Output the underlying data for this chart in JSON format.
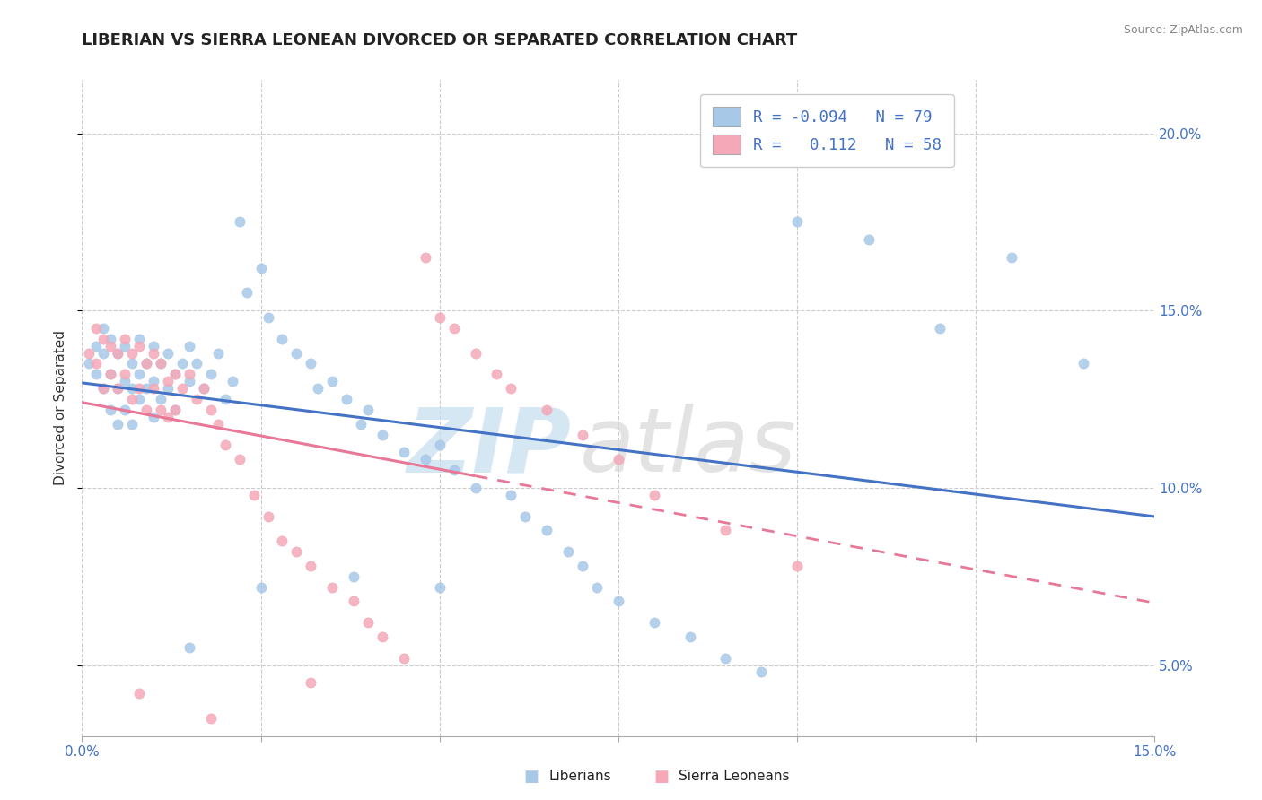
{
  "title": "LIBERIAN VS SIERRA LEONEAN DIVORCED OR SEPARATED CORRELATION CHART",
  "source": "Source: ZipAtlas.com",
  "ylabel": "Divorced or Separated",
  "xlim": [
    0.0,
    0.15
  ],
  "ylim": [
    0.03,
    0.215
  ],
  "xticks": [
    0.0,
    0.025,
    0.05,
    0.075,
    0.1,
    0.125,
    0.15
  ],
  "yticks": [
    0.05,
    0.1,
    0.15,
    0.2
  ],
  "liberian_R": -0.094,
  "liberian_N": 79,
  "sierraleone_R": 0.112,
  "sierraleone_N": 58,
  "liberian_dot_color": "#a8c8e8",
  "sierraleone_dot_color": "#f4a8b8",
  "liberian_line_color": "#4472c4",
  "sierraleone_line_color": "#e87898",
  "axis_color": "#4472c4",
  "grid_color": "#cccccc",
  "title_fontsize": 13,
  "source_color": "#888888",
  "watermark_zip_color": "#c8dff0",
  "watermark_atlas_color": "#d8d8d8",
  "lib_x": [
    0.001,
    0.002,
    0.002,
    0.003,
    0.003,
    0.003,
    0.004,
    0.004,
    0.004,
    0.005,
    0.005,
    0.005,
    0.006,
    0.006,
    0.006,
    0.007,
    0.007,
    0.007,
    0.008,
    0.008,
    0.008,
    0.009,
    0.009,
    0.01,
    0.01,
    0.01,
    0.011,
    0.011,
    0.012,
    0.012,
    0.013,
    0.013,
    0.014,
    0.015,
    0.015,
    0.016,
    0.017,
    0.018,
    0.019,
    0.02,
    0.021,
    0.022,
    0.023,
    0.025,
    0.026,
    0.028,
    0.03,
    0.032,
    0.033,
    0.035,
    0.037,
    0.039,
    0.04,
    0.042,
    0.045,
    0.048,
    0.05,
    0.052,
    0.055,
    0.06,
    0.062,
    0.065,
    0.068,
    0.07,
    0.072,
    0.075,
    0.08,
    0.085,
    0.09,
    0.095,
    0.1,
    0.11,
    0.12,
    0.13,
    0.14,
    0.05,
    0.038,
    0.025,
    0.015
  ],
  "lib_y": [
    0.135,
    0.14,
    0.132,
    0.138,
    0.145,
    0.128,
    0.142,
    0.132,
    0.122,
    0.138,
    0.128,
    0.118,
    0.14,
    0.13,
    0.122,
    0.135,
    0.128,
    0.118,
    0.142,
    0.132,
    0.125,
    0.135,
    0.128,
    0.14,
    0.13,
    0.12,
    0.135,
    0.125,
    0.138,
    0.128,
    0.132,
    0.122,
    0.135,
    0.14,
    0.13,
    0.135,
    0.128,
    0.132,
    0.138,
    0.125,
    0.13,
    0.175,
    0.155,
    0.162,
    0.148,
    0.142,
    0.138,
    0.135,
    0.128,
    0.13,
    0.125,
    0.118,
    0.122,
    0.115,
    0.11,
    0.108,
    0.112,
    0.105,
    0.1,
    0.098,
    0.092,
    0.088,
    0.082,
    0.078,
    0.072,
    0.068,
    0.062,
    0.058,
    0.052,
    0.048,
    0.175,
    0.17,
    0.145,
    0.165,
    0.135,
    0.072,
    0.075,
    0.072,
    0.055
  ],
  "sl_x": [
    0.001,
    0.002,
    0.002,
    0.003,
    0.003,
    0.004,
    0.004,
    0.005,
    0.005,
    0.006,
    0.006,
    0.007,
    0.007,
    0.008,
    0.008,
    0.009,
    0.009,
    0.01,
    0.01,
    0.011,
    0.011,
    0.012,
    0.012,
    0.013,
    0.013,
    0.014,
    0.015,
    0.016,
    0.017,
    0.018,
    0.019,
    0.02,
    0.022,
    0.024,
    0.026,
    0.028,
    0.03,
    0.032,
    0.035,
    0.038,
    0.04,
    0.042,
    0.045,
    0.048,
    0.05,
    0.052,
    0.055,
    0.058,
    0.06,
    0.065,
    0.07,
    0.075,
    0.08,
    0.09,
    0.1,
    0.032,
    0.018,
    0.008
  ],
  "sl_y": [
    0.138,
    0.145,
    0.135,
    0.142,
    0.128,
    0.14,
    0.132,
    0.138,
    0.128,
    0.142,
    0.132,
    0.138,
    0.125,
    0.14,
    0.128,
    0.135,
    0.122,
    0.138,
    0.128,
    0.135,
    0.122,
    0.13,
    0.12,
    0.132,
    0.122,
    0.128,
    0.132,
    0.125,
    0.128,
    0.122,
    0.118,
    0.112,
    0.108,
    0.098,
    0.092,
    0.085,
    0.082,
    0.078,
    0.072,
    0.068,
    0.062,
    0.058,
    0.052,
    0.165,
    0.148,
    0.145,
    0.138,
    0.132,
    0.128,
    0.122,
    0.115,
    0.108,
    0.098,
    0.088,
    0.078,
    0.045,
    0.035,
    0.042
  ]
}
